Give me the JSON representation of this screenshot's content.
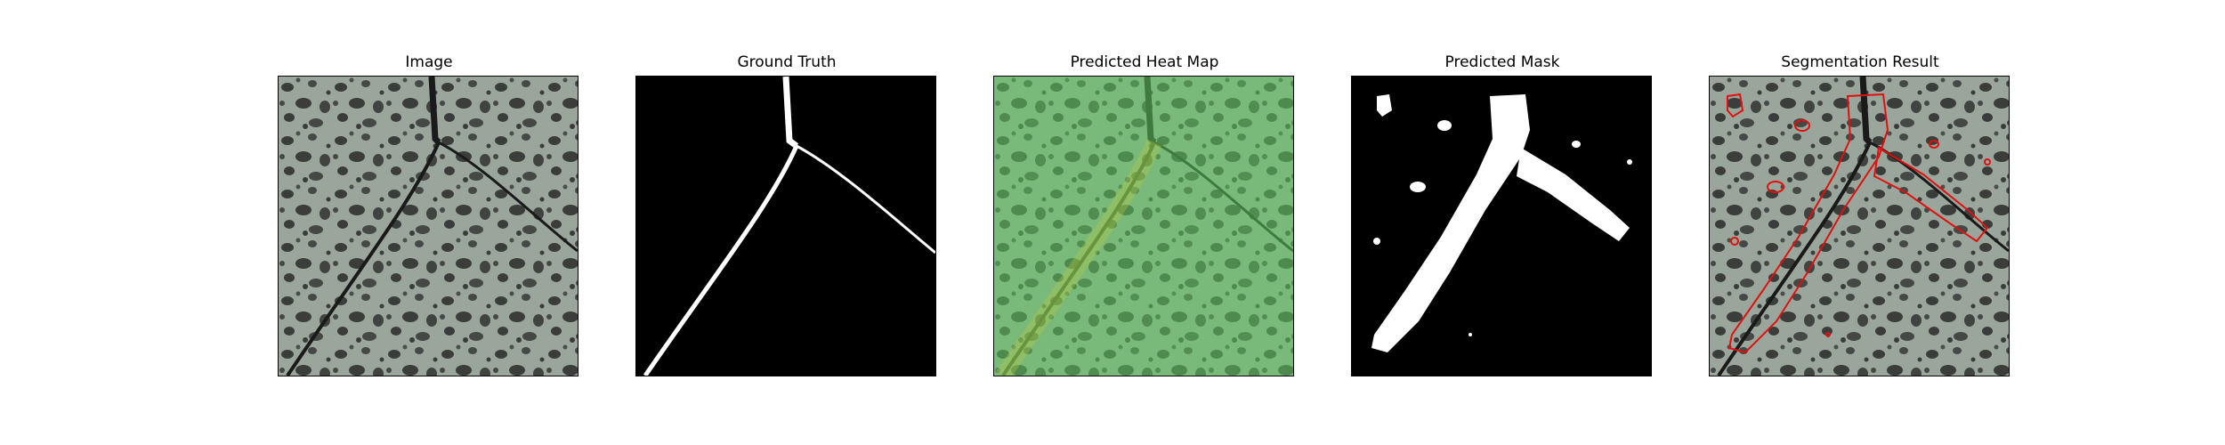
{
  "figure": {
    "panels": [
      {
        "title": "Image"
      },
      {
        "title": "Ground Truth"
      },
      {
        "title": "Predicted Heat Map"
      },
      {
        "title": "Predicted Mask"
      },
      {
        "title": "Segmentation Result"
      }
    ]
  },
  "colors": {
    "leaf_background": "#9aa69b",
    "leaf_spot": "#3a3d3a",
    "vein": "#1a1a1a",
    "mask_fg": "#ffffff",
    "mask_bg": "#000000",
    "heat_overlay": "#7fd27f",
    "contour": "#e01010"
  }
}
